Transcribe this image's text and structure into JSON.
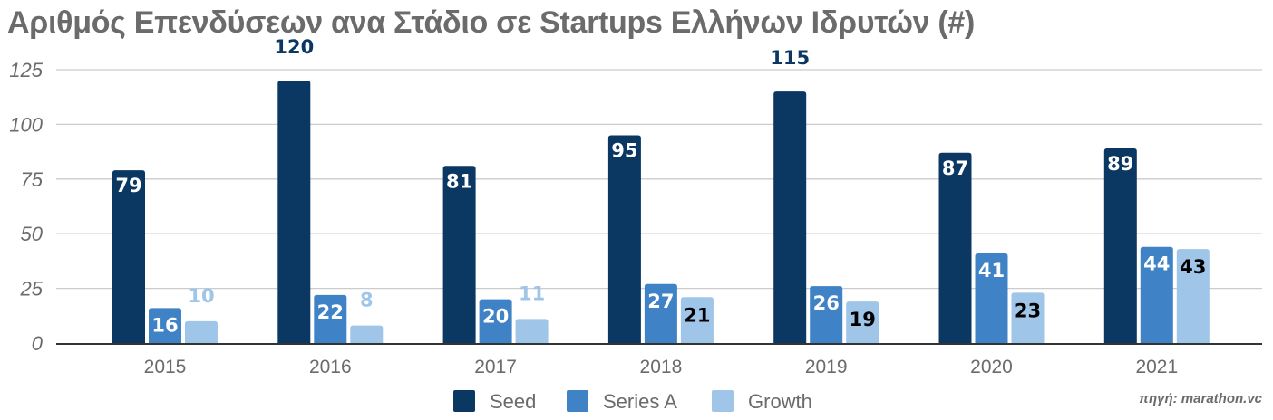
{
  "chart_data": {
    "type": "bar",
    "title": "Αριθμός Επενδύσεων ανα Στάδιο σε Startups Ελλήνων Ιδρυτών (#)",
    "xlabel": "",
    "ylabel": "",
    "ylim": [
      0,
      125
    ],
    "yticks": [
      0,
      25,
      50,
      75,
      100,
      125
    ],
    "grid": true,
    "legend_position": "bottom",
    "categories": [
      "2015",
      "2016",
      "2017",
      "2018",
      "2019",
      "2020",
      "2021"
    ],
    "series": [
      {
        "name": "Seed",
        "color": "#0b3763",
        "values": [
          79,
          120,
          81,
          95,
          115,
          87,
          89
        ]
      },
      {
        "name": "Series A",
        "color": "#3f83c6",
        "values": [
          16,
          22,
          20,
          27,
          26,
          41,
          44
        ]
      },
      {
        "name": "Growth",
        "color": "#9fc5e8",
        "values": [
          10,
          8,
          11,
          21,
          19,
          23,
          43
        ]
      }
    ]
  },
  "source": "πηγή: marathon.vc"
}
